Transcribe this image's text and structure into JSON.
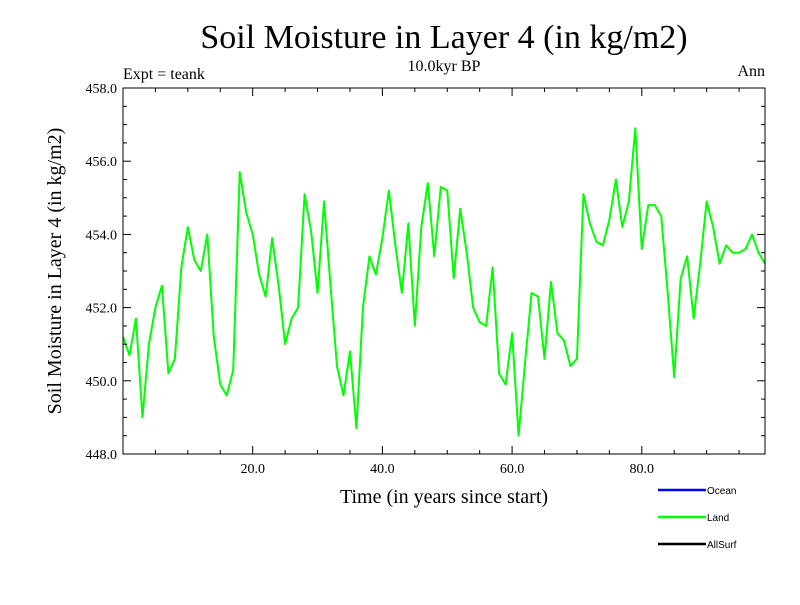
{
  "colors": {
    "ocean": "#0000ff",
    "land": "#00ff00",
    "allsurf": "#000000",
    "axis": "#000000",
    "background": "#ffffff"
  },
  "chart_data": {
    "type": "line",
    "title": "Soil Moisture in Layer 4 (in kg/m2)",
    "subtitle": "10.0kyr BP",
    "left_note": "Expt = teank",
    "right_note": "Ann",
    "xlabel": "Time (in years since start)",
    "ylabel": "Soil Moisture in Layer 4 (in kg/m2)",
    "xlim": [
      0,
      99
    ],
    "ylim": [
      448.0,
      458.0
    ],
    "xticks": [
      20.0,
      40.0,
      60.0,
      80.0
    ],
    "xtick_labels": [
      "20.0",
      "40.0",
      "60.0",
      "80.0"
    ],
    "yticks": [
      448.0,
      450.0,
      452.0,
      454.0,
      456.0,
      458.0
    ],
    "ytick_labels": [
      "448.0",
      "450.0",
      "452.0",
      "454.0",
      "456.0",
      "458.0"
    ],
    "legend": [
      {
        "name": "Ocean",
        "color": "#0000ff"
      },
      {
        "name": "Land",
        "color": "#00ff00"
      },
      {
        "name": "AllSurf",
        "color": "#000000"
      }
    ],
    "series": [
      {
        "name": "Land",
        "color": "#00ff00",
        "x": [
          0,
          1,
          2,
          3,
          4,
          5,
          6,
          7,
          8,
          9,
          10,
          11,
          12,
          13,
          14,
          15,
          16,
          17,
          18,
          19,
          20,
          21,
          22,
          23,
          24,
          25,
          26,
          27,
          28,
          29,
          30,
          31,
          32,
          33,
          34,
          35,
          36,
          37,
          38,
          39,
          40,
          41,
          42,
          43,
          44,
          45,
          46,
          47,
          48,
          49,
          50,
          51,
          52,
          53,
          54,
          55,
          56,
          57,
          58,
          59,
          60,
          61,
          62,
          63,
          64,
          65,
          66,
          67,
          68,
          69,
          70,
          71,
          72,
          73,
          74,
          75,
          76,
          77,
          78,
          79,
          80,
          81,
          82,
          83,
          84,
          85,
          86,
          87,
          88,
          89,
          90,
          91,
          92,
          93,
          94,
          95,
          96,
          97,
          98,
          99
        ],
        "values": [
          451.2,
          450.7,
          451.7,
          449.0,
          451.0,
          452.0,
          452.6,
          450.2,
          450.6,
          453.1,
          454.2,
          453.3,
          453.0,
          454.0,
          451.2,
          449.9,
          449.6,
          450.3,
          455.7,
          454.6,
          454.0,
          452.9,
          452.3,
          453.9,
          452.6,
          451.0,
          451.7,
          452.0,
          455.1,
          454.1,
          452.4,
          454.9,
          452.6,
          450.4,
          449.6,
          450.8,
          448.7,
          452.0,
          453.4,
          452.9,
          453.9,
          455.2,
          453.7,
          452.4,
          454.3,
          451.5,
          454.2,
          455.4,
          453.4,
          455.3,
          455.2,
          452.8,
          454.7,
          453.5,
          452.0,
          451.6,
          451.5,
          453.1,
          450.2,
          449.9,
          451.3,
          448.5,
          450.5,
          452.4,
          452.3,
          450.6,
          452.7,
          451.3,
          451.1,
          450.4,
          450.6,
          455.1,
          454.3,
          453.8,
          453.7,
          454.4,
          455.5,
          454.2,
          454.9,
          456.9,
          453.6,
          454.8,
          454.8,
          454.5,
          452.4,
          450.1,
          452.8,
          453.4,
          451.7,
          453.2,
          454.9,
          454.2,
          453.2,
          453.7,
          453.5,
          453.5,
          453.6,
          454.0,
          453.5,
          453.2
        ]
      }
    ]
  }
}
